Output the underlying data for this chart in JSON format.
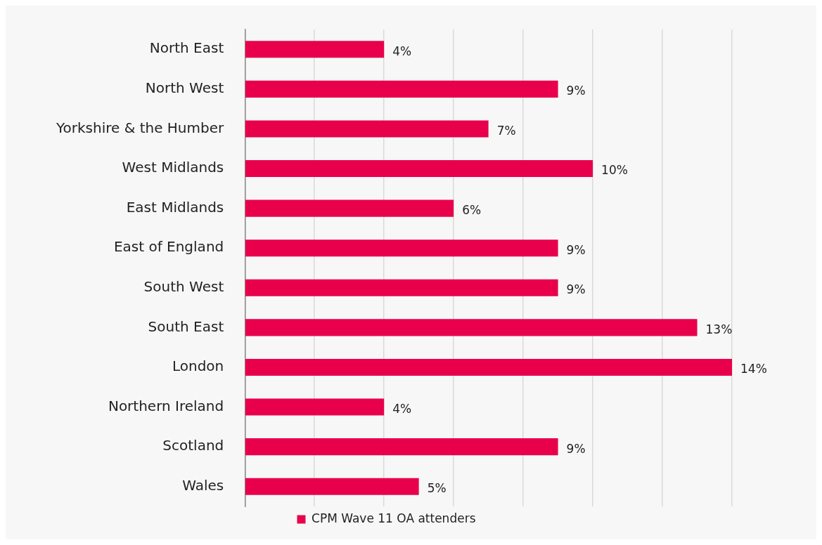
{
  "chart_data": {
    "type": "bar",
    "orientation": "horizontal",
    "categories": [
      "North East",
      "North West",
      "Yorkshire & the Humber",
      "West Midlands",
      "East Midlands",
      "East of England",
      "South West",
      "South East",
      "London",
      "Northern Ireland",
      "Scotland",
      "Wales"
    ],
    "series": [
      {
        "name": "CPM Wave 11 OA attenders",
        "color": "#e8004c",
        "values": [
          4,
          9,
          7,
          10,
          6,
          9,
          9,
          13,
          14,
          4,
          9,
          5
        ],
        "value_labels": [
          "4%",
          "9%",
          "7%",
          "10%",
          "6%",
          "9%",
          "9%",
          "13%",
          "14%",
          "4%",
          "9%",
          "5%"
        ]
      }
    ],
    "grid": "x",
    "legend": "bottom",
    "tick_labels": "y"
  }
}
